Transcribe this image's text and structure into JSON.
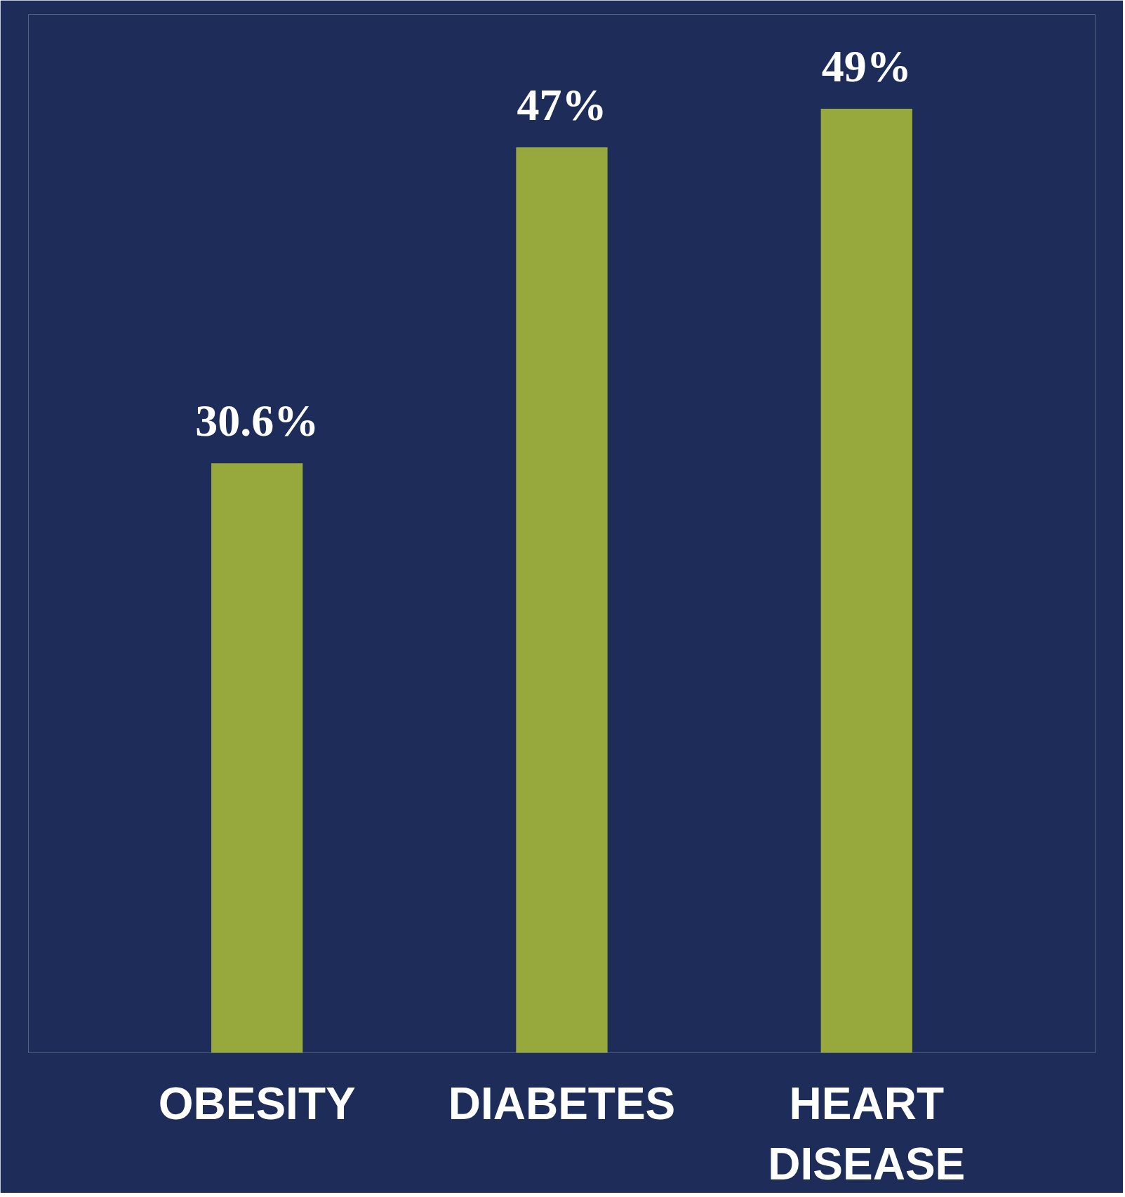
{
  "chart_data": {
    "type": "bar",
    "categories": [
      "OBESITY",
      "DIABETES",
      "HEART DISEASE"
    ],
    "values": [
      30.6,
      47,
      49
    ],
    "color": "#97a93c",
    "data_labels": true,
    "value_labels": [
      "30.6%",
      "47%",
      "49%"
    ]
  }
}
